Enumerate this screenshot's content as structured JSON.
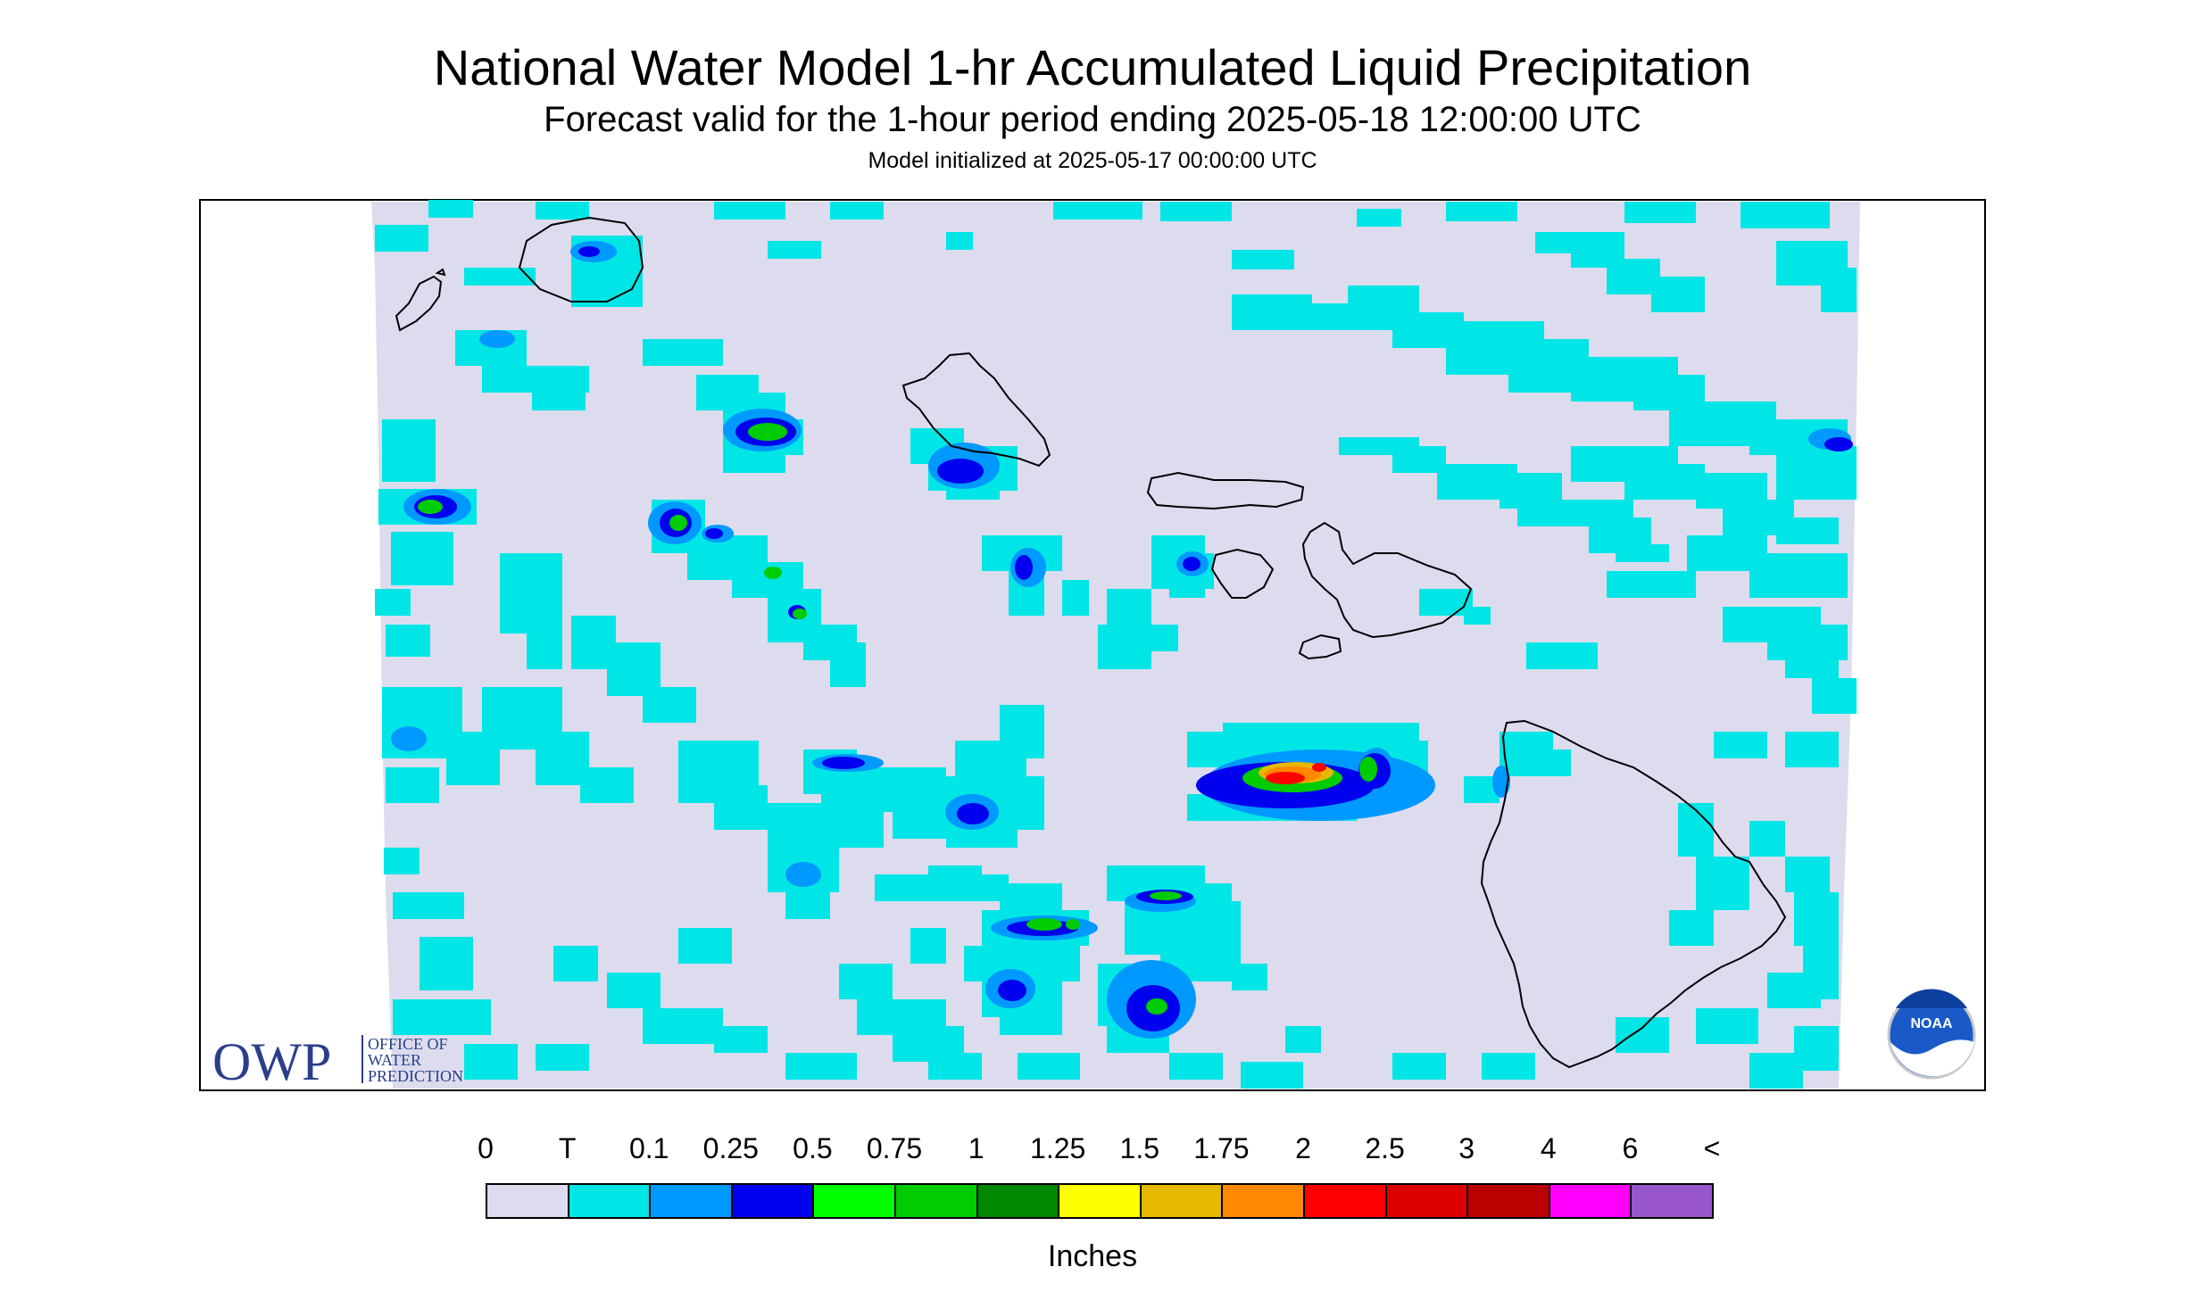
{
  "title": "National Water Model 1-hr Accumulated Liquid Precipitation",
  "subtitle": "Forecast valid for the 1-hour period ending 2025-05-18 12:00:00 UTC",
  "init_text": "Model initialized at 2025-05-17 00:00:00 UTC",
  "logo": {
    "owp_letters": "OWP",
    "owp_line1": "OFFICE OF",
    "owp_line2": "WATER",
    "owp_line3": "PREDICTION",
    "noaa_text": "NOAA"
  },
  "legend": {
    "labels": [
      "0",
      "T",
      "0.1",
      "0.25",
      "0.5",
      "0.75",
      "1",
      "1.25",
      "1.5",
      "1.75",
      "2",
      "2.5",
      "3",
      "4",
      "6",
      "<"
    ],
    "colors": [
      "#dcdcee",
      "#00e6e6",
      "#0099ff",
      "#0000ee",
      "#00ff00",
      "#00cc00",
      "#008800",
      "#ffff00",
      "#e6b800",
      "#ff8800",
      "#ff0000",
      "#dd0000",
      "#bb0000",
      "#ff00ff",
      "#9955cc"
    ],
    "unit": "Inches"
  },
  "colors": {
    "background": "#dcdcee",
    "trace": "#00e6e6",
    "outline": "#000000"
  }
}
